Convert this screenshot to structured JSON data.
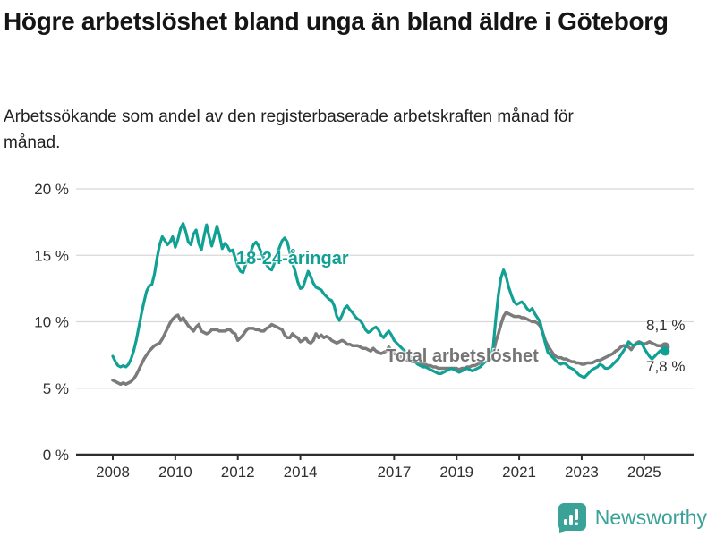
{
  "header": {
    "title": "Högre arbetslöshet bland unga än bland äldre i Göteborg",
    "subtitle": "Arbetssökande som andel av den registerbaserade arbetskraften månad för månad."
  },
  "footer": {
    "brand": "Newsworthy"
  },
  "colors": {
    "youth_line": "#11a094",
    "total_line": "#7b7b7b",
    "grid": "#d8d8d8",
    "axis": "#2d2d2d",
    "tick_text": "#303030",
    "logo_teal": "#3aa296"
  },
  "chart_data": {
    "type": "line",
    "title": "Högre arbetslöshet bland unga än bland äldre i Göteborg",
    "subtitle": "Arbetssökande som andel av den registerbaserade arbetskraften månad för månad.",
    "unit": "%",
    "grid": true,
    "legend_position": "inline-labels",
    "x_start": "2008-01",
    "x_end": "2025-09",
    "freq": "monthly",
    "first_year": 2008,
    "ylim": [
      0,
      20
    ],
    "y_axis": {
      "ticks": [
        {
          "value": 0,
          "label": "0 %"
        },
        {
          "value": 5,
          "label": "5 %"
        },
        {
          "value": 10,
          "label": "10 %"
        },
        {
          "value": 15,
          "label": "15 %"
        },
        {
          "value": 20,
          "label": "20 %"
        }
      ]
    },
    "x_axis": {
      "ticks": [
        {
          "value": 2008,
          "label": "2008"
        },
        {
          "value": 2010,
          "label": "2010"
        },
        {
          "value": 2012,
          "label": "2012"
        },
        {
          "value": 2014,
          "label": "2014"
        },
        {
          "value": 2017,
          "label": "2017"
        },
        {
          "value": 2019,
          "label": "2019"
        },
        {
          "value": 2021,
          "label": "2021"
        },
        {
          "value": 2023,
          "label": "2023"
        },
        {
          "value": 2025,
          "label": "2025"
        }
      ]
    },
    "series": [
      {
        "id": "total",
        "label": "Total arbetslöshet",
        "color": "#7b7b7b",
        "line_width": 3.5,
        "end_label": "8,1 %",
        "end_value": 8.1,
        "values": [
          5.6,
          5.5,
          5.4,
          5.3,
          5.4,
          5.3,
          5.4,
          5.5,
          5.7,
          6.0,
          6.4,
          6.8,
          7.2,
          7.5,
          7.8,
          8.0,
          8.2,
          8.3,
          8.4,
          8.7,
          9.1,
          9.5,
          9.9,
          10.2,
          10.4,
          10.5,
          10.1,
          10.3,
          10.0,
          9.7,
          9.5,
          9.3,
          9.6,
          9.8,
          9.3,
          9.2,
          9.1,
          9.2,
          9.4,
          9.4,
          9.4,
          9.3,
          9.3,
          9.3,
          9.4,
          9.4,
          9.2,
          9.1,
          8.6,
          8.8,
          9.0,
          9.3,
          9.5,
          9.5,
          9.5,
          9.4,
          9.4,
          9.3,
          9.3,
          9.5,
          9.6,
          9.8,
          9.7,
          9.6,
          9.5,
          9.4,
          9.0,
          8.8,
          8.8,
          9.1,
          8.9,
          8.8,
          8.5,
          8.6,
          8.8,
          8.5,
          8.4,
          8.6,
          9.1,
          8.8,
          9.0,
          8.8,
          8.9,
          8.8,
          8.6,
          8.5,
          8.4,
          8.5,
          8.6,
          8.5,
          8.3,
          8.3,
          8.2,
          8.2,
          8.2,
          8.1,
          8.0,
          8.0,
          7.9,
          7.8,
          8.0,
          7.8,
          7.7,
          7.6,
          7.7,
          7.8,
          8.1,
          7.8,
          7.6,
          7.5,
          7.4,
          7.3,
          7.2,
          7.1,
          7.1,
          7.0,
          7.0,
          6.9,
          6.9,
          6.8,
          6.8,
          6.7,
          6.7,
          6.6,
          6.6,
          6.5,
          6.5,
          6.5,
          6.5,
          6.5,
          6.5,
          6.5,
          6.5,
          6.4,
          6.5,
          6.5,
          6.6,
          6.6,
          6.7,
          6.7,
          6.8,
          6.9,
          7.0,
          7.0,
          7.1,
          7.2,
          7.6,
          8.5,
          9.1,
          9.8,
          10.4,
          10.7,
          10.6,
          10.5,
          10.4,
          10.4,
          10.4,
          10.3,
          10.3,
          10.2,
          10.1,
          10.0,
          10.0,
          9.9,
          9.7,
          9.2,
          8.6,
          8.2,
          7.9,
          7.6,
          7.4,
          7.3,
          7.3,
          7.2,
          7.2,
          7.1,
          7.0,
          7.0,
          6.9,
          6.9,
          6.8,
          6.8,
          6.9,
          6.9,
          6.9,
          7.0,
          7.1,
          7.1,
          7.2,
          7.3,
          7.4,
          7.5,
          7.6,
          7.8,
          7.9,
          8.1,
          8.2,
          8.2,
          8.1,
          7.9,
          8.2,
          8.4,
          8.5,
          8.4,
          8.3,
          8.4,
          8.5,
          8.4,
          8.3,
          8.2,
          8.2,
          8.2,
          8.1
        ]
      },
      {
        "id": "youth",
        "label": "18-24-åringar",
        "color": "#11a094",
        "line_width": 3.2,
        "end_label": "7,8 %",
        "end_value": 7.8,
        "values": [
          7.4,
          7.0,
          6.7,
          6.6,
          6.7,
          6.6,
          6.8,
          7.2,
          7.8,
          8.6,
          9.6,
          10.6,
          11.5,
          12.3,
          12.7,
          12.8,
          13.6,
          14.8,
          15.8,
          16.4,
          16.1,
          15.8,
          16.0,
          16.4,
          15.6,
          16.2,
          17.0,
          17.4,
          16.8,
          16.0,
          15.8,
          16.6,
          16.9,
          15.9,
          15.4,
          16.4,
          17.3,
          16.4,
          15.7,
          16.4,
          17.2,
          16.5,
          15.5,
          15.9,
          15.7,
          15.3,
          15.4,
          14.8,
          14.2,
          13.8,
          13.7,
          14.3,
          14.8,
          15.3,
          15.8,
          16.0,
          15.7,
          15.2,
          14.8,
          14.3,
          14.0,
          13.9,
          14.4,
          15.0,
          15.6,
          16.1,
          16.3,
          16.0,
          15.2,
          14.4,
          13.8,
          13.0,
          12.5,
          12.6,
          13.2,
          13.8,
          13.4,
          12.9,
          12.6,
          12.5,
          12.4,
          12.1,
          11.9,
          11.7,
          11.6,
          11.2,
          10.4,
          10.1,
          10.5,
          11.0,
          11.2,
          10.9,
          10.7,
          10.4,
          10.2,
          10.1,
          9.8,
          9.4,
          9.2,
          9.3,
          9.5,
          9.6,
          9.4,
          9.0,
          8.8,
          9.1,
          9.3,
          9.0,
          8.6,
          8.4,
          8.2,
          8.0,
          7.8,
          7.6,
          7.4,
          7.2,
          7.0,
          6.8,
          6.7,
          6.6,
          6.6,
          6.5,
          6.4,
          6.3,
          6.2,
          6.1,
          6.1,
          6.2,
          6.3,
          6.4,
          6.5,
          6.4,
          6.3,
          6.2,
          6.3,
          6.4,
          6.5,
          6.4,
          6.3,
          6.4,
          6.5,
          6.6,
          6.8,
          7.0,
          7.1,
          7.3,
          8.1,
          10.2,
          12.0,
          13.3,
          13.9,
          13.4,
          12.6,
          12.0,
          11.5,
          11.3,
          11.4,
          11.5,
          11.3,
          11.0,
          10.8,
          11.0,
          10.6,
          10.3,
          10.0,
          9.2,
          8.4,
          7.7,
          7.5,
          7.3,
          7.1,
          6.9,
          6.8,
          6.9,
          6.8,
          6.6,
          6.5,
          6.4,
          6.2,
          6.0,
          5.9,
          5.8,
          6.0,
          6.2,
          6.4,
          6.5,
          6.6,
          6.8,
          6.7,
          6.5,
          6.5,
          6.6,
          6.8,
          7.0,
          7.2,
          7.5,
          7.8,
          8.1,
          8.5,
          8.3,
          8.2,
          8.3,
          8.4,
          8.4,
          8.0,
          7.7,
          7.4,
          7.2,
          7.4,
          7.6,
          7.8,
          7.9,
          7.8
        ]
      }
    ]
  }
}
